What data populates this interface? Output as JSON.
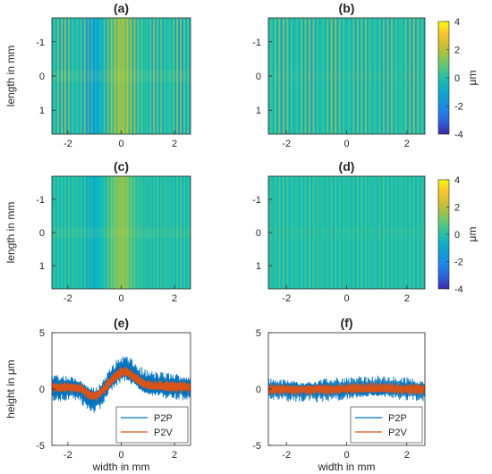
{
  "figure": {
    "colorbar": {
      "unit": "μm",
      "ticks": [
        "4",
        "2",
        "0",
        "-2",
        "-4"
      ],
      "range": [
        -4,
        4
      ],
      "colormap": "parula"
    },
    "legend": {
      "entries": [
        "P2P",
        "P2V"
      ],
      "placement": "bottom-right"
    },
    "colors": {
      "P2P": "#0072BD",
      "P2V": "#D95319",
      "axis": "#262626"
    }
  },
  "chart_data": [
    {
      "id": "a",
      "title": "(a)",
      "type": "heatmap",
      "ylabel": "length in mm",
      "xlabel": "",
      "xlim": [
        -2.6,
        2.6
      ],
      "ylim": [
        -1.7,
        1.7
      ],
      "y_reversed": true,
      "xticks": [
        "-2",
        "0",
        "2"
      ],
      "yticks": [
        "-1",
        "0",
        "1"
      ],
      "clim": [
        -4,
        4
      ],
      "description_values": {
        "stripe_amplitude_um": 1.5,
        "center_bump_um": 1.5,
        "left_dip_um": -1.0
      }
    },
    {
      "id": "b",
      "title": "(b)",
      "type": "heatmap",
      "ylabel": "",
      "xlabel": "",
      "xlim": [
        -2.6,
        2.6
      ],
      "ylim": [
        -1.7,
        1.7
      ],
      "y_reversed": true,
      "xticks": [
        "-2",
        "0",
        "2"
      ],
      "yticks": [
        "-1",
        "0",
        "1"
      ],
      "clim": [
        -4,
        4
      ],
      "description_values": {
        "stripe_amplitude_um": 1.4,
        "center_bump_um": 0.0,
        "left_dip_um": 0.0
      }
    },
    {
      "id": "c",
      "title": "(c)",
      "type": "heatmap",
      "ylabel": "length in mm",
      "xlabel": "",
      "xlim": [
        -2.6,
        2.6
      ],
      "ylim": [
        -1.7,
        1.7
      ],
      "y_reversed": true,
      "xticks": [
        "-2",
        "0",
        "2"
      ],
      "yticks": [
        "-1",
        "0",
        "1"
      ],
      "clim": [
        -4,
        4
      ],
      "description_values": {
        "stripe_amplitude_um": 0.6,
        "center_bump_um": 1.4,
        "left_dip_um": -0.6
      }
    },
    {
      "id": "d",
      "title": "(d)",
      "type": "heatmap",
      "ylabel": "",
      "xlabel": "",
      "xlim": [
        -2.6,
        2.6
      ],
      "ylim": [
        -1.7,
        1.7
      ],
      "y_reversed": true,
      "xticks": [
        "-2",
        "0",
        "2"
      ],
      "yticks": [
        "-1",
        "0",
        "1"
      ],
      "clim": [
        -4,
        4
      ],
      "description_values": {
        "stripe_amplitude_um": 0.6,
        "center_bump_um": 0.0,
        "left_dip_um": 0.0
      }
    },
    {
      "id": "e",
      "title": "(e)",
      "type": "line",
      "ylabel": "height in μm",
      "xlabel": "width in mm",
      "xlim": [
        -2.6,
        2.6
      ],
      "ylim": [
        -5,
        5
      ],
      "xticks": [
        "-2",
        "0",
        "2"
      ],
      "yticks": [
        "5",
        "0",
        "-5"
      ],
      "series": [
        {
          "name": "P2P",
          "x_range": [
            -2.6,
            2.6
          ],
          "mean_profile": {
            "base": 0.2,
            "bump_center": 0.1,
            "bump_height": 1.5,
            "left_dip": -1.0
          },
          "oscillation_amplitude": 1.4
        },
        {
          "name": "P2V",
          "x_range": [
            -2.6,
            2.6
          ],
          "mean_profile": {
            "base": 0.2,
            "bump_center": 0.1,
            "bump_height": 1.3,
            "left_dip": -0.8
          },
          "oscillation_amplitude": 0.6
        }
      ]
    },
    {
      "id": "f",
      "title": "(f)",
      "type": "line",
      "ylabel": "",
      "xlabel": "width in mm",
      "xlim": [
        -2.6,
        2.6
      ],
      "ylim": [
        -5,
        5
      ],
      "xticks": [
        "-2",
        "0",
        "2"
      ],
      "yticks": [
        "5",
        "0",
        "-5"
      ],
      "series": [
        {
          "name": "P2P",
          "x_range": [
            -2.6,
            2.6
          ],
          "mean_profile": {
            "base": 0.0,
            "bump_center": 0.0,
            "bump_height": 0.0,
            "left_dip": 0.0
          },
          "oscillation_amplitude": 1.2
        },
        {
          "name": "P2V",
          "x_range": [
            -2.6,
            2.6
          ],
          "mean_profile": {
            "base": 0.0,
            "bump_center": 0.0,
            "bump_height": 0.0,
            "left_dip": 0.0
          },
          "oscillation_amplitude": 0.6
        }
      ]
    }
  ]
}
